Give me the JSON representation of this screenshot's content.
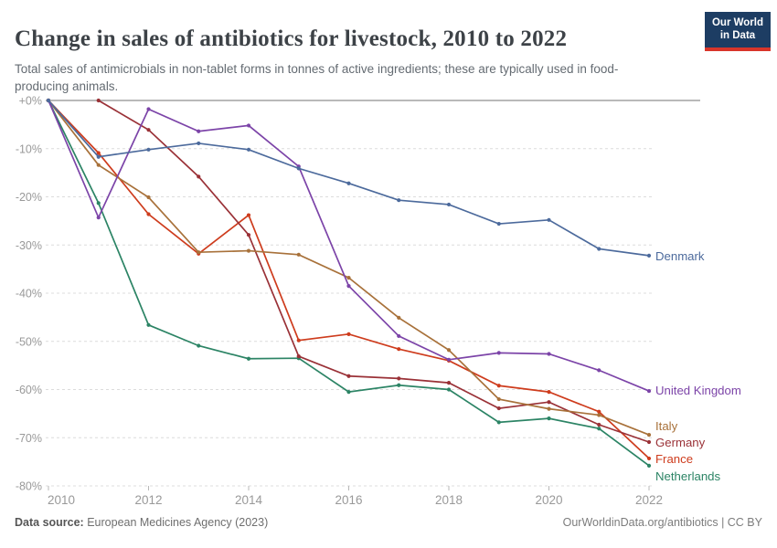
{
  "header": {
    "title": "Change in sales of antibiotics for livestock, 2010 to 2022",
    "subtitle": "Total sales of antimicrobials in non-tablet forms in tonnes of active ingredients; these are typically used in food-producing animals.",
    "logo_line1": "Our World",
    "logo_line2": "in Data"
  },
  "footer": {
    "source_label": "Data source:",
    "source_value": " European Medicines Agency (2023)",
    "attribution": "OurWorldinData.org/antibiotics | CC BY"
  },
  "chart_data": {
    "type": "line",
    "title": "Change in sales of antibiotics for livestock, 2010 to 2022",
    "x": [
      2010,
      2011,
      2012,
      2013,
      2014,
      2015,
      2016,
      2017,
      2018,
      2019,
      2020,
      2021,
      2022
    ],
    "x_tick_labels": [
      "2010",
      "2012",
      "2014",
      "2016",
      "2018",
      "2020",
      "2022"
    ],
    "y_tick_labels": [
      "+0%",
      "-10%",
      "-20%",
      "-30%",
      "-40%",
      "-50%",
      "-60%",
      "-70%",
      "-80%"
    ],
    "y_tick_values": [
      0,
      -10,
      -20,
      -30,
      -40,
      -50,
      -60,
      -70,
      -80
    ],
    "ylim": [
      -80,
      0
    ],
    "xlim": [
      2010,
      2022
    ],
    "ylabel": "",
    "xlabel": "",
    "grid": "horizontal-dashed",
    "legend_position": "right-of-line-ends",
    "series": [
      {
        "name": "Netherlands",
        "color": "#2C8465",
        "label_dy": 12,
        "values": [
          0,
          -21.3,
          -46.6,
          -50.9,
          -53.6,
          -53.5,
          -60.5,
          -59.1,
          -60.0,
          -66.8,
          -66.0,
          -68.1,
          -75.8
        ]
      },
      {
        "name": "France",
        "color": "#CE3C1D",
        "label_dy": 1,
        "values": [
          0,
          -10.9,
          -23.6,
          -31.8,
          -23.8,
          -49.8,
          -48.5,
          -51.6,
          -54.0,
          -59.2,
          -60.5,
          -64.6,
          -74.3
        ]
      },
      {
        "name": "Germany",
        "color": "#9A3137",
        "label_dy": 1,
        "values": [
          null,
          0,
          -6.1,
          -15.8,
          -27.9,
          -53.1,
          -57.2,
          -57.7,
          -58.6,
          -63.9,
          -62.6,
          -67.3,
          -70.9
        ]
      },
      {
        "name": "Italy",
        "color": "#A8713A",
        "label_dy": -9,
        "values": [
          0,
          -13.4,
          -20.1,
          -31.5,
          -31.2,
          -32.0,
          -36.8,
          -45.1,
          -51.8,
          -62.0,
          -64.0,
          -65.3,
          -69.4
        ]
      },
      {
        "name": "United Kingdom",
        "color": "#7C44A8",
        "label_dy": 0,
        "values": [
          0,
          -24.3,
          -1.8,
          -6.4,
          -5.2,
          -13.7,
          -38.5,
          -48.9,
          -53.8,
          -52.4,
          -52.6,
          -56.0,
          -60.3
        ]
      },
      {
        "name": "Denmark",
        "color": "#4C6A9C",
        "label_dy": 1,
        "values": [
          0,
          -11.7,
          -10.2,
          -8.9,
          -10.2,
          -14.1,
          -17.2,
          -20.7,
          -21.6,
          -25.6,
          -24.8,
          -30.8,
          -32.2
        ]
      }
    ]
  }
}
